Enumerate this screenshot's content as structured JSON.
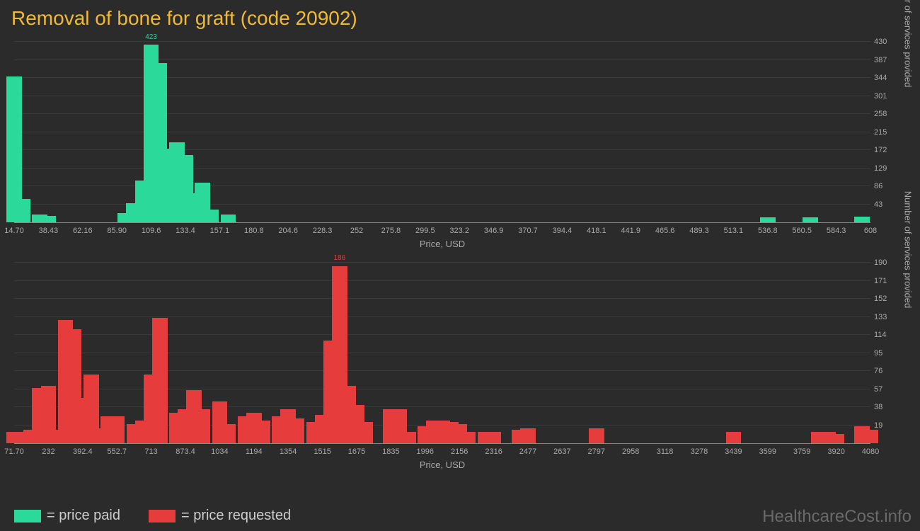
{
  "title": "Removal of bone for graft (code 20902)",
  "watermark": "HealthcareCost.info",
  "colors": {
    "bg": "#2b2b2b",
    "title": "#f0b933",
    "axis": "#aaa",
    "grid": "#3a3a3a",
    "green": "#2bd99a",
    "red": "#e73c3c"
  },
  "legend": [
    {
      "swatch": "#2bd99a",
      "label": "= price paid"
    },
    {
      "swatch": "#e73c3c",
      "label": "= price requested"
    }
  ],
  "chart_top": {
    "type": "bar",
    "bar_color": "#2bd99a",
    "xlabel": "Price, USD",
    "ylabel": "Number of services provided",
    "xlim": [
      14.7,
      608
    ],
    "ylim": [
      0,
      430
    ],
    "xticks": [
      "14.70",
      "38.43",
      "62.16",
      "85.90",
      "109.6",
      "133.4",
      "157.1",
      "180.8",
      "204.6",
      "228.3",
      "252",
      "275.8",
      "299.5",
      "323.2",
      "346.9",
      "370.7",
      "394.4",
      "418.1",
      "441.9",
      "465.6",
      "489.3",
      "513.1",
      "536.8",
      "560.5",
      "584.3",
      "608"
    ],
    "yticks": [
      43,
      86,
      129,
      172,
      215,
      258,
      301,
      344,
      387,
      430
    ],
    "bar_width": 0.9,
    "peak": {
      "x": 109.6,
      "value": 423,
      "label": "423"
    },
    "bars": [
      {
        "x": 14.7,
        "y": 348
      },
      {
        "x": 20.6,
        "y": 56
      },
      {
        "x": 32.5,
        "y": 18
      },
      {
        "x": 38.43,
        "y": 15
      },
      {
        "x": 91.8,
        "y": 22
      },
      {
        "x": 97.7,
        "y": 45
      },
      {
        "x": 103.7,
        "y": 100
      },
      {
        "x": 109.6,
        "y": 423
      },
      {
        "x": 115.5,
        "y": 380
      },
      {
        "x": 121.5,
        "y": 175
      },
      {
        "x": 127.4,
        "y": 190
      },
      {
        "x": 133.4,
        "y": 160
      },
      {
        "x": 139.3,
        "y": 70
      },
      {
        "x": 145.2,
        "y": 95
      },
      {
        "x": 151.2,
        "y": 30
      },
      {
        "x": 163.0,
        "y": 18
      },
      {
        "x": 536.8,
        "y": 12
      },
      {
        "x": 566.5,
        "y": 12
      },
      {
        "x": 602.0,
        "y": 14
      }
    ]
  },
  "chart_bottom": {
    "type": "bar",
    "bar_color": "#e73c3c",
    "xlabel": "Price, USD",
    "ylabel": "Number of services provided",
    "xlim": [
      71.7,
      4080
    ],
    "ylim": [
      0,
      190
    ],
    "xticks": [
      "71.70",
      "232",
      "392.4",
      "552.7",
      "713",
      "873.4",
      "1034",
      "1194",
      "1354",
      "1515",
      "1675",
      "1835",
      "1996",
      "2156",
      "2316",
      "2477",
      "2637",
      "2797",
      "2958",
      "3118",
      "3278",
      "3439",
      "3599",
      "3759",
      "3920",
      "4080"
    ],
    "yticks": [
      19,
      38,
      57,
      76,
      95,
      114,
      133,
      152,
      171,
      190
    ],
    "bar_width": 0.9,
    "peak": {
      "x": 1595,
      "value": 186,
      "label": "186"
    },
    "bars": [
      {
        "x": 71.7,
        "y": 12
      },
      {
        "x": 112,
        "y": 12
      },
      {
        "x": 152,
        "y": 14
      },
      {
        "x": 192,
        "y": 58
      },
      {
        "x": 232,
        "y": 60
      },
      {
        "x": 272,
        "y": 14
      },
      {
        "x": 312,
        "y": 130
      },
      {
        "x": 352,
        "y": 120
      },
      {
        "x": 392.4,
        "y": 48
      },
      {
        "x": 432,
        "y": 72
      },
      {
        "x": 473,
        "y": 16
      },
      {
        "x": 513,
        "y": 28
      },
      {
        "x": 553,
        "y": 28
      },
      {
        "x": 633,
        "y": 20
      },
      {
        "x": 673,
        "y": 24
      },
      {
        "x": 713,
        "y": 72
      },
      {
        "x": 753,
        "y": 132
      },
      {
        "x": 833,
        "y": 32
      },
      {
        "x": 873.4,
        "y": 36
      },
      {
        "x": 913,
        "y": 56
      },
      {
        "x": 954,
        "y": 36
      },
      {
        "x": 1034,
        "y": 44
      },
      {
        "x": 1074,
        "y": 20
      },
      {
        "x": 1154,
        "y": 28
      },
      {
        "x": 1194,
        "y": 32
      },
      {
        "x": 1234,
        "y": 24
      },
      {
        "x": 1314,
        "y": 28
      },
      {
        "x": 1354,
        "y": 36
      },
      {
        "x": 1394,
        "y": 26
      },
      {
        "x": 1475,
        "y": 22
      },
      {
        "x": 1515,
        "y": 30
      },
      {
        "x": 1555,
        "y": 108
      },
      {
        "x": 1595,
        "y": 186
      },
      {
        "x": 1635,
        "y": 60
      },
      {
        "x": 1675,
        "y": 40
      },
      {
        "x": 1715,
        "y": 22
      },
      {
        "x": 1835,
        "y": 36
      },
      {
        "x": 1875,
        "y": 36
      },
      {
        "x": 1916,
        "y": 12
      },
      {
        "x": 1996,
        "y": 18
      },
      {
        "x": 2036,
        "y": 24
      },
      {
        "x": 2076,
        "y": 24
      },
      {
        "x": 2116,
        "y": 22
      },
      {
        "x": 2156,
        "y": 20
      },
      {
        "x": 2196,
        "y": 12
      },
      {
        "x": 2276,
        "y": 12
      },
      {
        "x": 2316,
        "y": 12
      },
      {
        "x": 2437,
        "y": 14
      },
      {
        "x": 2477,
        "y": 16
      },
      {
        "x": 2797,
        "y": 16
      },
      {
        "x": 3439,
        "y": 12
      },
      {
        "x": 3839,
        "y": 12
      },
      {
        "x": 3880,
        "y": 12
      },
      {
        "x": 3920,
        "y": 10
      },
      {
        "x": 4040,
        "y": 18
      },
      {
        "x": 4080,
        "y": 14
      }
    ]
  }
}
